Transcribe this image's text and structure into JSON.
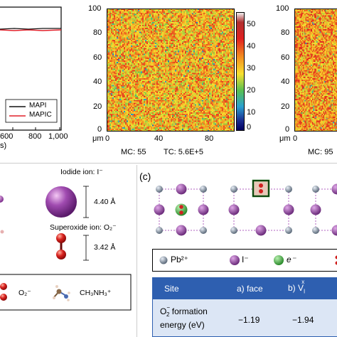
{
  "top": {
    "panel_a": {
      "xticks": [
        "600",
        "800",
        "1,000"
      ],
      "xlabel_partial": "s)",
      "legend": [
        {
          "label": "MAPI",
          "color": "#111111"
        },
        {
          "label": "MAPIC",
          "color": "#e0202a"
        }
      ]
    },
    "panel_map1": {
      "yticks": [
        "100",
        "80",
        "60",
        "40",
        "20",
        "0"
      ],
      "xticks": [
        "0",
        "40",
        "80"
      ],
      "unit": "μm",
      "stats": [
        "MC: 55",
        "TC: 5.6E+5"
      ],
      "colorbar_ticks": [
        "50",
        "40",
        "30",
        "20",
        "10",
        "0"
      ]
    },
    "panel_map2": {
      "yticks": [
        "100",
        "80",
        "60",
        "40",
        "20",
        "0"
      ],
      "xticks": [
        "0"
      ],
      "unit": "μm",
      "stats": [
        "MC: 95"
      ]
    }
  },
  "bottom_left": {
    "iodide_label": "Iodide ion: I⁻",
    "iodide_size": "4.40 Å",
    "superoxide_label": "Superoxide ion: O₂⁻",
    "superoxide_size": "3.42 Å",
    "legend_o2": "O₂⁻",
    "legend_ma": "CH₃NH₃⁺"
  },
  "panel_c": {
    "label": "(c)",
    "legend": [
      "Pb²⁺",
      "I⁻",
      "e⁻"
    ],
    "table": {
      "header": [
        "Site",
        "a) face",
        "b) V"
      ],
      "header_sup": "x",
      "header_sub": "I",
      "row_label_line1": "O",
      "row_label_sup": "−",
      "row_label_sub": "2",
      "row_label_rest": " formation",
      "row_label_line2": "energy (eV)",
      "values": [
        "−1.19",
        "−1.94"
      ]
    }
  },
  "colors": {
    "pb": "#8a97a6",
    "iodide": "#8b3a9e",
    "electron": "#3cb043",
    "oxygen": "#d0211f",
    "table_header": "#2e5fb0",
    "table_row": "#dce6f5",
    "highlight_border": "#1a7a1a"
  }
}
